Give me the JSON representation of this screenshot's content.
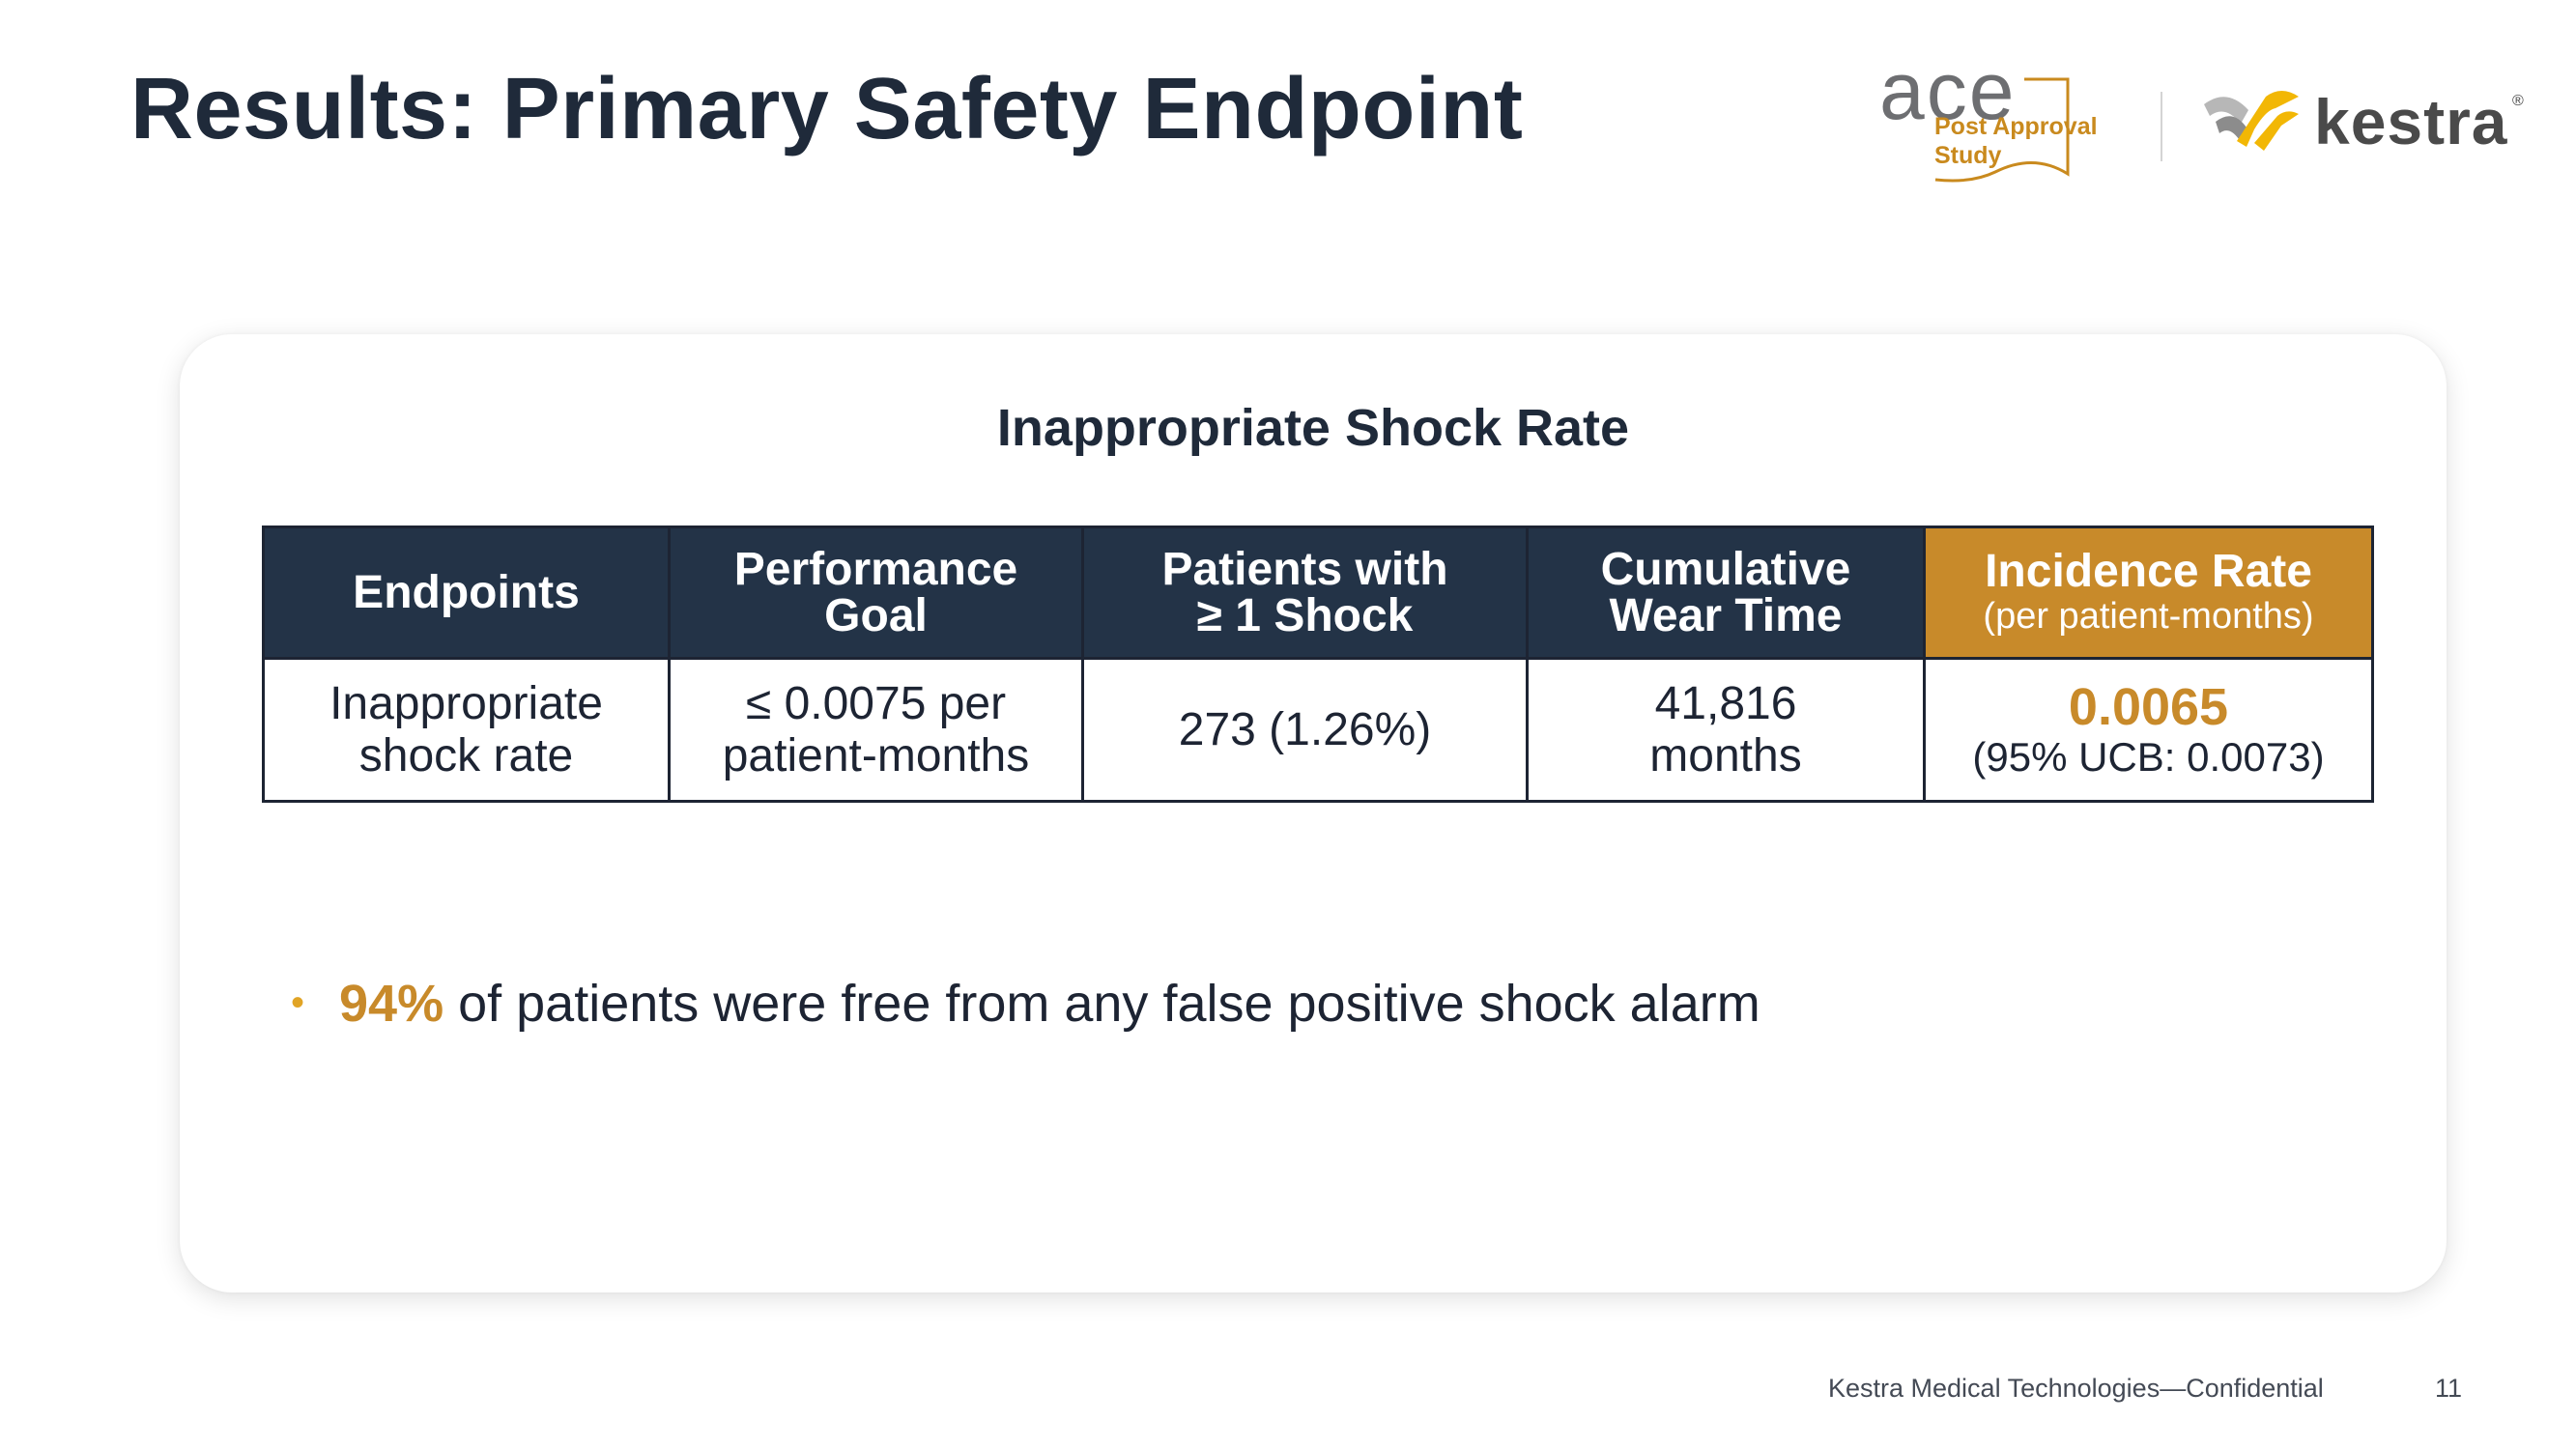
{
  "slide": {
    "title": "Results: Primary Safety Endpoint"
  },
  "logos": {
    "ace_word": "ace",
    "ace_sub_line1": "Post Approval",
    "ace_sub_line2": "Study",
    "kestra_word": "kestra",
    "kestra_reg": "®",
    "ace_color": "#c98a1e",
    "kestra_yellow": "#f2b705"
  },
  "card": {
    "title": "Inappropriate Shock Rate",
    "table": {
      "headers": [
        {
          "line1": "Endpoints",
          "line2": ""
        },
        {
          "line1": "Performance",
          "line2": "Goal"
        },
        {
          "line1": "Patients with",
          "line2": "≥ 1 Shock"
        },
        {
          "line1": "Cumulative",
          "line2": "Wear Time"
        },
        {
          "line1": "Incidence Rate",
          "sub": "(per patient-months)"
        }
      ],
      "row": {
        "endpoint_line1": "Inappropriate",
        "endpoint_line2": "shock rate",
        "goal_line1": "≤ 0.0075 per",
        "goal_line2": "patient-months",
        "patients": "273 (1.26%)",
        "wear_line1": "41,816",
        "wear_line2": "months",
        "rate_value": "0.0065",
        "rate_ci": "(95% UCB: 0.0073)"
      }
    },
    "bullet": {
      "highlight": "94%",
      "text": " of patients were free from any false positive shock alarm"
    }
  },
  "footer": {
    "text": "Kestra Medical Technologies—Confidential",
    "page": "11"
  },
  "colors": {
    "header_navy": "#233347",
    "accent_gold": "#c88a2a",
    "bullet_dot": "#e1a425"
  }
}
